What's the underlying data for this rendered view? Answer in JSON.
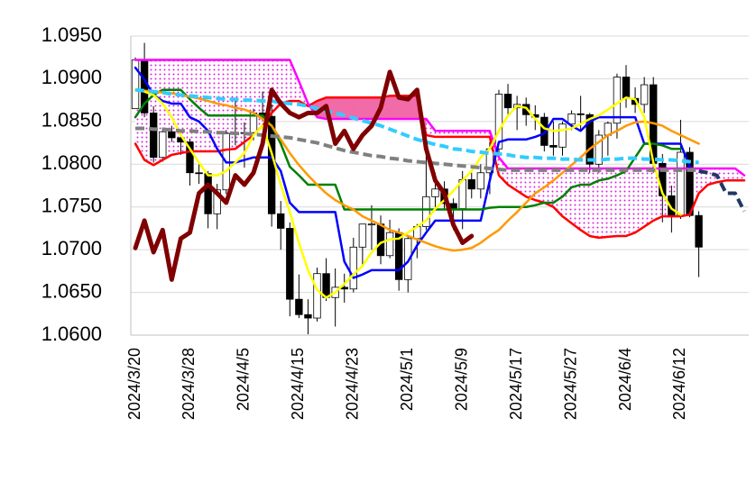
{
  "chart_data": {
    "type": "candlestick",
    "categories": [
      "2024/3/20",
      null,
      null,
      null,
      null,
      null,
      "2024/3/28",
      null,
      null,
      null,
      null,
      null,
      "2024/4/5",
      null,
      null,
      null,
      null,
      null,
      "2024/4/15",
      null,
      null,
      null,
      null,
      null,
      "2024/4/23",
      null,
      null,
      null,
      null,
      null,
      "2024/5/1",
      null,
      null,
      null,
      null,
      null,
      "2024/5/9",
      null,
      null,
      null,
      null,
      null,
      "2024/5/17",
      null,
      null,
      null,
      null,
      null,
      "2024/5/27",
      null,
      null,
      null,
      null,
      null,
      "2024/6/4",
      null,
      null,
      null,
      null,
      null,
      "2024/6/12",
      null,
      null,
      null,
      null,
      null,
      null,
      null
    ],
    "open": [
      1.0865,
      1.0922,
      1.086,
      1.0808,
      1.0838,
      1.0831,
      1.0826,
      1.079,
      1.0789,
      1.0742,
      1.077,
      1.0836,
      1.0836,
      1.0837,
      1.086,
      1.0856,
      1.0742,
      1.0725,
      1.0642,
      1.0624,
      1.062,
      1.0672,
      1.0644,
      1.0656,
      1.0654,
      1.0703,
      1.073,
      1.073,
      1.0693,
      1.072,
      1.0665,
      1.0713,
      1.0727,
      1.0762,
      1.0771,
      1.0754,
      1.0748,
      1.0782,
      1.0771,
      1.079,
      1.0818,
      1.0882,
      1.0866,
      1.087,
      1.0858,
      1.0855,
      1.0822,
      1.082,
      1.0847,
      1.0859,
      1.0858,
      1.08,
      1.0834,
      1.0848,
      1.0902,
      1.0877,
      1.087,
      1.0893,
      1.0801,
      1.0763,
      1.074,
      1.0814,
      1.074,
      null,
      null,
      null,
      null,
      null
    ],
    "high": [
      1.0925,
      1.0942,
      1.0868,
      1.0843,
      1.0845,
      1.0838,
      1.083,
      1.08,
      1.0792,
      1.0777,
      1.084,
      1.0876,
      1.0849,
      1.0865,
      1.0885,
      1.087,
      1.0757,
      1.0732,
      1.0671,
      1.0642,
      1.0679,
      1.069,
      1.0678,
      1.0672,
      1.0714,
      1.073,
      1.0752,
      1.074,
      1.0735,
      1.0725,
      1.0716,
      1.073,
      1.0812,
      1.079,
      1.078,
      1.076,
      1.0792,
      1.079,
      1.08,
      1.0826,
      1.0887,
      1.0894,
      1.088,
      1.0878,
      1.0869,
      1.086,
      1.085,
      1.085,
      1.0863,
      1.088,
      1.086,
      1.084,
      1.085,
      1.0906,
      1.0916,
      1.089,
      1.0902,
      1.0902,
      1.0812,
      1.0775,
      1.0852,
      1.082,
      1.0745,
      null,
      null,
      null,
      null,
      null
    ],
    "low": [
      1.0865,
      1.0855,
      1.0802,
      1.0803,
      1.0826,
      1.0811,
      1.0775,
      1.0777,
      1.0725,
      1.0724,
      1.0765,
      1.0822,
      1.0796,
      1.0828,
      1.085,
      1.0727,
      1.07,
      1.0622,
      1.062,
      1.0601,
      1.0616,
      1.064,
      1.061,
      1.0638,
      1.065,
      1.068,
      1.07,
      1.0683,
      1.069,
      1.0652,
      1.065,
      1.069,
      1.0723,
      1.075,
      1.0746,
      1.0723,
      1.0724,
      1.076,
      1.076,
      1.0765,
      1.081,
      1.0855,
      1.084,
      1.0845,
      1.084,
      1.0815,
      1.081,
      1.081,
      1.084,
      1.084,
      1.079,
      1.079,
      1.081,
      1.083,
      1.0866,
      1.086,
      1.086,
      1.079,
      1.0732,
      1.072,
      1.0736,
      1.0738,
      1.0668,
      null,
      null,
      null,
      null,
      null
    ],
    "close": [
      1.0922,
      1.086,
      1.0808,
      1.0838,
      1.0831,
      1.0826,
      1.079,
      1.0789,
      1.0742,
      1.077,
      1.0836,
      1.0836,
      1.0837,
      1.086,
      1.0856,
      1.0742,
      1.0725,
      1.0642,
      1.0624,
      1.062,
      1.0672,
      1.0644,
      1.0656,
      1.0654,
      1.0703,
      1.073,
      1.073,
      1.0693,
      1.072,
      1.0665,
      1.0713,
      1.0727,
      1.0762,
      1.0771,
      1.0754,
      1.0748,
      1.0782,
      1.0771,
      1.079,
      1.0818,
      1.0882,
      1.0866,
      1.087,
      1.0858,
      1.0855,
      1.0822,
      1.082,
      1.0847,
      1.0859,
      1.0858,
      1.08,
      1.0834,
      1.0848,
      1.0902,
      1.0877,
      1.087,
      1.0893,
      1.0801,
      1.0763,
      1.074,
      1.0814,
      1.074,
      1.0703,
      null,
      null,
      null,
      null,
      null
    ],
    "up_color": "#ffffff",
    "down_color": "#000000",
    "cloud": {
      "span_a": {
        "color": "#ff0000",
        "values": [
          1.0824,
          1.0805,
          1.0799,
          1.0805,
          1.0811,
          1.0813,
          1.0815,
          1.0815,
          1.0815,
          1.0815,
          1.0817,
          1.0818,
          1.0826,
          1.0834,
          1.0845,
          1.086,
          1.0871,
          1.0874,
          1.0874,
          1.0868,
          1.0874,
          1.0878,
          1.0878,
          1.0878,
          1.0878,
          1.0878,
          1.0878,
          1.0878,
          1.088,
          1.088,
          1.088,
          1.088,
          1.0834,
          1.0832,
          1.0832,
          1.0832,
          1.0832,
          1.0832,
          1.0832,
          1.0832,
          1.0787,
          1.0776,
          1.0769,
          1.0762,
          1.0758,
          1.0755,
          1.075,
          1.0739,
          1.0731,
          1.0723,
          1.0716,
          1.0714,
          1.0715,
          1.0716,
          1.0716,
          1.072,
          1.0727,
          1.0734,
          1.0739,
          1.0739,
          1.0739,
          1.0741,
          1.0766,
          1.0776,
          1.0779,
          1.0781,
          1.0781,
          1.0781
        ]
      },
      "span_b": {
        "color": "#ff00ff",
        "values": [
          1.0922,
          1.0922,
          1.0922,
          1.0922,
          1.0922,
          1.0922,
          1.0922,
          1.0922,
          1.0922,
          1.0922,
          1.0922,
          1.0922,
          1.0922,
          1.0922,
          1.0922,
          1.0922,
          1.0922,
          1.0922,
          1.0897,
          1.0871,
          1.0855,
          1.0853,
          1.0853,
          1.0853,
          1.0853,
          1.0853,
          1.0853,
          1.0853,
          1.0853,
          1.0853,
          1.0853,
          1.0853,
          1.0853,
          1.0839,
          1.0839,
          1.0839,
          1.0839,
          1.0839,
          1.0839,
          1.0839,
          1.0808,
          1.0795,
          1.0795,
          1.0795,
          1.0795,
          1.0795,
          1.0795,
          1.0795,
          1.0795,
          1.0795,
          1.0795,
          1.0795,
          1.0795,
          1.0795,
          1.0795,
          1.0795,
          1.0795,
          1.0795,
          1.0795,
          1.0795,
          1.0795,
          1.0795,
          1.0795,
          1.0795,
          1.0795,
          1.0795,
          1.0795,
          1.0787
        ]
      },
      "fill_a_above": "#f06ba8",
      "fill_b_above": "#e020e0"
    },
    "lines": [
      {
        "color": "#0000ff",
        "dashed": false,
        "thick": false,
        "values": [
          1.0913,
          1.0899,
          1.0881,
          1.0874,
          1.0871,
          1.0871,
          1.0855,
          1.085,
          1.0839,
          1.0818,
          1.0802,
          1.0802,
          1.0805,
          1.0808,
          1.0808,
          1.0808,
          1.0792,
          1.0755,
          1.0744,
          1.0744,
          1.0744,
          1.0744,
          1.0744,
          1.0686,
          1.0667,
          1.0671,
          1.0676,
          1.0676,
          1.0676,
          1.0676,
          1.0686,
          1.0705,
          1.072,
          1.0734,
          1.0734,
          1.0734,
          1.0734,
          1.0734,
          1.0734,
          1.0781,
          1.0826,
          1.0829,
          1.0829,
          1.0829,
          1.0832,
          1.0836,
          1.0853,
          1.0853,
          1.0845,
          1.0839,
          1.085,
          1.0855,
          1.0855,
          1.0855,
          1.0855,
          1.0855,
          1.0824,
          1.0824,
          1.0824,
          1.0824,
          1.0824,
          1.0797,
          null,
          null,
          null,
          null,
          null,
          null
        ]
      },
      {
        "color": "#008000",
        "dashed": false,
        "thick": false,
        "values": [
          1.0855,
          1.0871,
          1.0881,
          1.0887,
          1.0887,
          1.0887,
          1.0876,
          1.0866,
          1.0857,
          1.0857,
          1.0857,
          1.0857,
          1.0857,
          1.0857,
          1.0857,
          1.0845,
          1.0824,
          1.0797,
          1.0787,
          1.0776,
          1.0776,
          1.0776,
          1.0776,
          1.0747,
          1.0747,
          1.0747,
          1.0747,
          1.0747,
          1.0747,
          1.0747,
          1.0747,
          1.0747,
          1.0747,
          1.0747,
          1.0747,
          1.0747,
          1.0747,
          1.0747,
          1.0747,
          1.0749,
          1.075,
          1.075,
          1.075,
          1.075,
          1.0752,
          1.0755,
          1.0755,
          1.0762,
          1.0773,
          1.0776,
          1.0776,
          1.0781,
          1.0783,
          1.0787,
          1.0792,
          1.0808,
          1.0824,
          1.0824,
          1.0822,
          1.0818,
          1.0818,
          null,
          null,
          null,
          null,
          null,
          null,
          null
        ]
      },
      {
        "color": "#ff9900",
        "dashed": false,
        "thick": false,
        "values": [
          1.0887,
          1.0886,
          1.0885,
          1.0884,
          1.0883,
          1.0881,
          1.0879,
          1.0877,
          1.0874,
          1.0871,
          1.0869,
          1.0866,
          1.0864,
          1.086,
          1.0853,
          1.0845,
          1.0829,
          1.0813,
          1.0799,
          1.0787,
          1.0776,
          1.0766,
          1.0758,
          1.0752,
          1.0747,
          1.0739,
          1.0734,
          1.0729,
          1.0723,
          1.072,
          1.0716,
          1.0712,
          1.0708,
          1.0704,
          1.0701,
          1.0699,
          1.07,
          1.0702,
          1.0708,
          1.0716,
          1.0723,
          1.0734,
          1.0744,
          1.0755,
          1.0766,
          1.0773,
          1.0781,
          1.079,
          1.0799,
          1.0808,
          1.0818,
          1.0826,
          1.0834,
          1.0839,
          1.0845,
          1.0849,
          1.085,
          1.0848,
          1.0845,
          1.0839,
          1.0834,
          1.0829,
          1.0824,
          null,
          null,
          null,
          null,
          null
        ]
      },
      {
        "color": "#ffff00",
        "dashed": false,
        "thick": false,
        "values": [
          1.0887,
          1.0885,
          1.0881,
          1.0871,
          1.0855,
          1.0834,
          1.0818,
          1.0802,
          1.0787,
          1.0787,
          1.0792,
          1.0802,
          1.0813,
          1.0834,
          1.0845,
          1.0813,
          1.0776,
          1.0744,
          1.0708,
          1.0676,
          1.0653,
          1.0644,
          1.065,
          1.066,
          1.0671,
          1.0681,
          1.0697,
          1.0708,
          1.0712,
          1.0713,
          1.072,
          1.0727,
          1.0734,
          1.0748,
          1.0758,
          1.0769,
          1.0781,
          1.0792,
          1.0808,
          1.0818,
          1.0839,
          1.0857,
          1.0868,
          1.0866,
          1.0853,
          1.0842,
          1.0839,
          1.084,
          1.0842,
          1.0847,
          1.0853,
          1.0857,
          1.0864,
          1.0871,
          1.0878,
          1.0876,
          1.0855,
          1.0802,
          1.0766,
          1.0748,
          1.0741,
          null,
          null,
          null,
          null,
          null,
          null,
          null
        ]
      },
      {
        "color": "#33ccff",
        "dashed": true,
        "thick": false,
        "values": [
          1.0887,
          1.0886,
          1.0885,
          1.0884,
          1.0882,
          1.0881,
          1.088,
          1.0879,
          1.0878,
          1.0877,
          1.0876,
          1.0876,
          1.0875,
          1.0875,
          1.0874,
          1.0874,
          1.0872,
          1.0871,
          1.087,
          1.0868,
          1.0865,
          1.0862,
          1.086,
          1.0857,
          1.0854,
          1.0851,
          1.0848,
          1.0845,
          1.0841,
          1.0837,
          1.0833,
          1.0829,
          1.0826,
          1.0823,
          1.0821,
          1.0818,
          1.0817,
          1.0815,
          1.0814,
          1.0813,
          1.0812,
          1.0811,
          1.0809,
          1.0808,
          1.0808,
          1.0807,
          1.0807,
          1.0806,
          1.0806,
          1.0805,
          1.0805,
          1.0805,
          1.0806,
          1.0806,
          1.0807,
          1.0807,
          1.0806,
          1.0806,
          1.0805,
          1.0805,
          1.0804,
          1.0803,
          1.0802,
          null,
          null,
          null,
          null,
          null
        ]
      },
      {
        "color": "#808080",
        "dashed": true,
        "thick": false,
        "values": [
          1.0842,
          1.0842,
          1.0841,
          1.0841,
          1.084,
          1.0839,
          1.0839,
          1.0838,
          1.0838,
          1.0837,
          1.0837,
          1.0836,
          1.0836,
          1.0835,
          1.0834,
          1.0833,
          1.0832,
          1.0831,
          1.0829,
          1.0827,
          1.0825,
          1.0822,
          1.0819,
          1.0816,
          1.0814,
          1.0812,
          1.081,
          1.0809,
          1.0807,
          1.0806,
          1.0804,
          1.0803,
          1.0802,
          1.0801,
          1.08,
          1.0799,
          1.0798,
          1.0797,
          1.0796,
          1.0795,
          1.0794,
          1.0793,
          1.0793,
          1.0793,
          1.0793,
          1.0793,
          1.0793,
          1.0793,
          1.0793,
          1.0793,
          1.0793,
          1.0793,
          1.0793,
          1.0793,
          1.0793,
          1.0793,
          1.0793,
          1.0793,
          1.0793,
          1.0793,
          1.0793,
          1.0793,
          1.0793,
          null,
          null,
          null,
          null,
          null
        ]
      },
      {
        "color": "#1f3864",
        "dashed": true,
        "thick": false,
        "values": [
          null,
          null,
          null,
          null,
          null,
          null,
          null,
          null,
          null,
          null,
          null,
          null,
          null,
          null,
          null,
          null,
          null,
          null,
          null,
          null,
          null,
          null,
          null,
          null,
          null,
          null,
          null,
          null,
          null,
          null,
          null,
          null,
          null,
          null,
          null,
          null,
          null,
          null,
          null,
          null,
          null,
          null,
          null,
          null,
          null,
          null,
          null,
          null,
          null,
          null,
          null,
          null,
          null,
          null,
          null,
          null,
          null,
          null,
          null,
          null,
          null,
          null,
          1.0792,
          1.079,
          1.0787,
          1.0766,
          1.0766,
          1.0745
        ]
      },
      {
        "color": "#800000",
        "dashed": false,
        "thick": true,
        "values": [
          1.0702,
          1.0734,
          1.0697,
          1.0723,
          1.0665,
          1.0713,
          1.072,
          1.0766,
          1.0776,
          1.0766,
          1.0755,
          1.0787,
          1.0776,
          1.079,
          1.0824,
          1.0887,
          1.0871,
          1.086,
          1.0855,
          1.086,
          1.086,
          1.0868,
          1.0824,
          1.0839,
          1.0818,
          1.0834,
          1.0845,
          1.0866,
          1.0908,
          1.0878,
          1.0876,
          1.0887,
          1.0818,
          1.0781,
          1.0766,
          1.0729,
          1.0708,
          1.0716,
          null,
          null,
          null,
          null,
          null,
          null,
          null,
          null,
          null,
          null,
          null,
          null,
          null,
          null,
          null,
          null,
          null,
          null,
          null,
          null,
          null,
          null,
          null,
          null,
          null,
          null,
          null,
          null,
          null,
          null
        ]
      }
    ],
    "ylim": [
      1.06,
      1.095
    ],
    "yticks": [
      {
        "value": 1.06,
        "label": "1.0600"
      },
      {
        "value": 1.065,
        "label": "1.0650"
      },
      {
        "value": 1.07,
        "label": "1.0700"
      },
      {
        "value": 1.075,
        "label": "1.0750"
      },
      {
        "value": 1.08,
        "label": "1.0800"
      },
      {
        "value": 1.085,
        "label": "1.0850"
      },
      {
        "value": 1.09,
        "label": "1.0900"
      },
      {
        "value": 1.095,
        "label": "1.0950"
      }
    ],
    "grid": true
  }
}
